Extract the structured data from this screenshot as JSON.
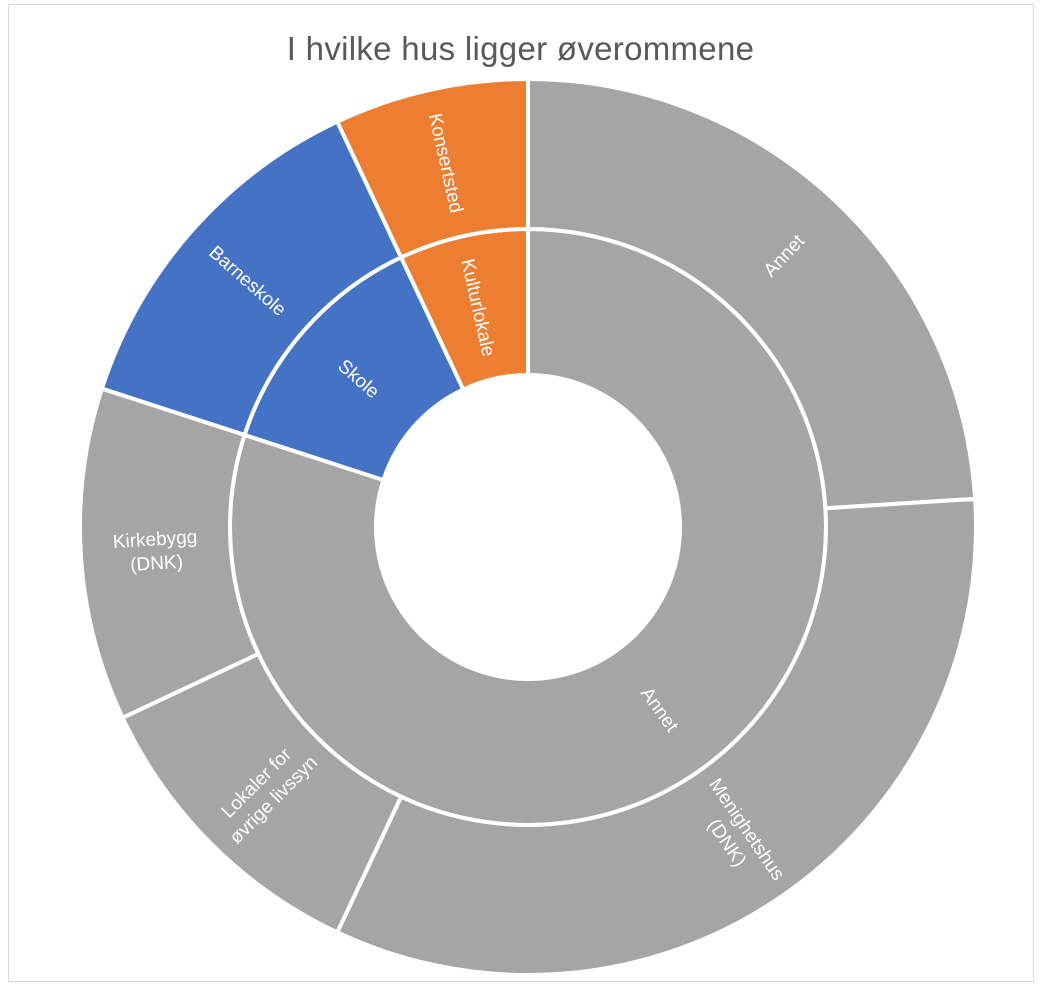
{
  "chart_data": {
    "type": "sunburst",
    "title": "I hvilke hus ligger øverommene",
    "colors": {
      "Annet": "#a5a5a5",
      "Skole": "#4472c4",
      "Kulturlokale": "#ed7d31",
      "separator": "#ffffff"
    },
    "rings": [
      {
        "name": "inner",
        "segments": [
          {
            "label": "Annet",
            "group": "Annet",
            "value": 80
          },
          {
            "label": "Skole",
            "group": "Skole",
            "value": 13
          },
          {
            "label": "Kulturlokale",
            "group": "Kulturlokale",
            "value": 7
          }
        ]
      },
      {
        "name": "outer",
        "segments": [
          {
            "label": "Annet",
            "group": "Annet",
            "value": 24
          },
          {
            "label": "Menighetshus (DNK)",
            "lines": [
              "Menighetshus",
              "(DNK)"
            ],
            "group": "Annet",
            "value": 33
          },
          {
            "label": "Lokaler for øvrige livssyn",
            "lines": [
              "Lokaler for",
              "øvrige livssyn"
            ],
            "group": "Annet",
            "value": 11
          },
          {
            "label": "Kirkebygg (DNK)",
            "lines": [
              "Kirkebygg",
              "(DNK)"
            ],
            "group": "Annet",
            "value": 12
          },
          {
            "label": "Barneskole",
            "group": "Skole",
            "value": 13
          },
          {
            "label": "Konsertsted",
            "group": "Kulturlokale",
            "value": 7
          }
        ]
      }
    ]
  }
}
